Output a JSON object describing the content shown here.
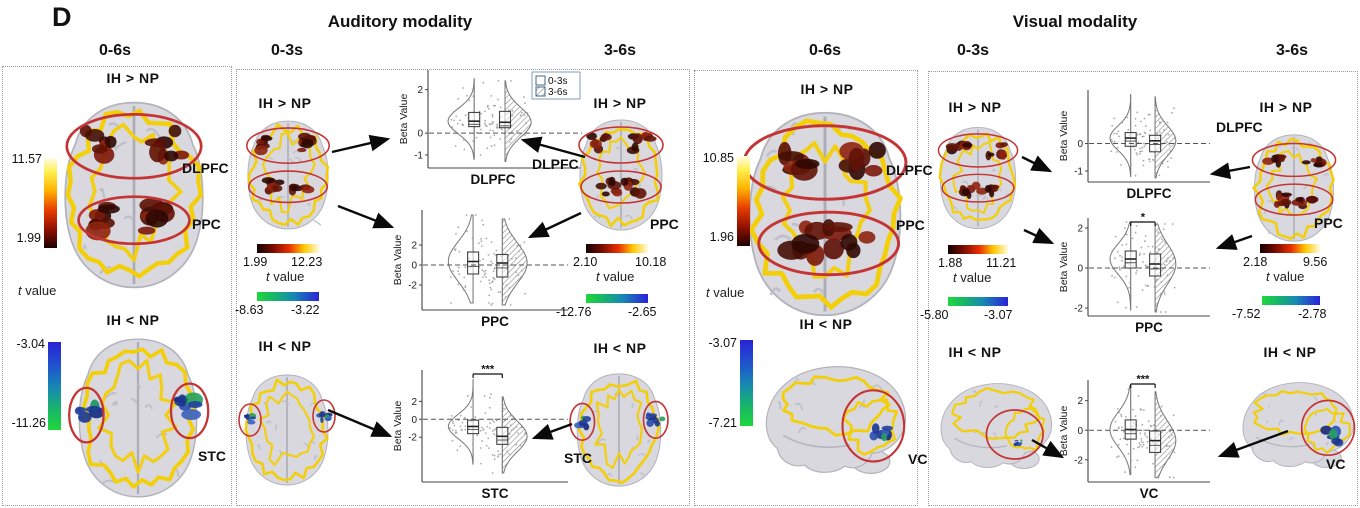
{
  "panel_label": "D",
  "sections": {
    "auditory": {
      "title": "Auditory modality"
    },
    "visual": {
      "title": "Visual modality"
    }
  },
  "time_headers": [
    "0-6s",
    "0-3s",
    "3-6s",
    "0-6s",
    "0-3s",
    "3-6s"
  ],
  "contrasts": {
    "positive": "IH > NP",
    "negative": "IH < NP"
  },
  "t_label": {
    "italic": "t",
    "rest": " value"
  },
  "colorbars": {
    "aud06": {
      "hot": {
        "max": "11.57",
        "min": "1.99"
      },
      "cool": {
        "max": "-3.04",
        "min": "-11.26"
      }
    },
    "aud03": {
      "hot": {
        "min": "1.99",
        "max": "12.23"
      },
      "cool": {
        "min": "-8.63",
        "max": "-3.22"
      }
    },
    "aud36": {
      "hot": {
        "min": "2.10",
        "max": "10.18"
      },
      "cool": {
        "min": "-12.76",
        "max": "-2.65"
      }
    },
    "vis06": {
      "hot": {
        "max": "10.85",
        "min": "1.96"
      },
      "cool": {
        "max": "-3.07",
        "min": "-7.21"
      }
    },
    "vis03": {
      "hot": {
        "min": "1.88",
        "max": "11.21"
      },
      "cool": {
        "min": "-5.80",
        "max": "-3.07"
      }
    },
    "vis36": {
      "hot": {
        "min": "2.18",
        "max": "9.56"
      },
      "cool": {
        "min": "-7.52",
        "max": "-2.78"
      }
    }
  },
  "regions": {
    "aud06": [
      "DLPFC",
      "PPC",
      "STC"
    ],
    "aud36": [
      "DLPFC",
      "PPC",
      "STC"
    ],
    "vis06": [
      "DLPFC",
      "PPC",
      "VC"
    ],
    "vis36": [
      "DLPFC",
      "PPC",
      "VC"
    ]
  },
  "chart_data": [
    {
      "type": "violin+box",
      "title": "Auditory DLPFC beta values",
      "xlabel": "DLPFC",
      "ylabel": "Beta Value",
      "yticks": [
        2,
        0,
        -1
      ],
      "ylim": [
        -1.6,
        2.9
      ],
      "zero_line": true,
      "significance": null,
      "legend": [
        "0-3s",
        "3-6s"
      ],
      "series": [
        {
          "name": "0-3s",
          "median": 0.55,
          "q1": 0.3,
          "q3": 0.95,
          "min": -1.2,
          "max": 2.5
        },
        {
          "name": "3-6s",
          "median": 0.5,
          "q1": 0.25,
          "q3": 1.0,
          "min": -1.3,
          "max": 2.4
        }
      ]
    },
    {
      "type": "violin+box",
      "title": "Auditory PPC beta values",
      "xlabel": "PPC",
      "ylabel": "Beta Value",
      "yticks": [
        2,
        0,
        -2
      ],
      "ylim": [
        -4.5,
        5.5
      ],
      "zero_line": true,
      "significance": null,
      "series": [
        {
          "name": "0-3s",
          "median": 0.35,
          "q1": -0.9,
          "q3": 1.3,
          "min": -3.8,
          "max": 5.0
        },
        {
          "name": "3-6s",
          "median": 0.2,
          "q1": -1.2,
          "q3": 1.05,
          "min": -4.0,
          "max": 4.6
        }
      ]
    },
    {
      "type": "violin+box",
      "title": "Auditory STC beta values",
      "xlabel": "STC",
      "ylabel": "Beta Value",
      "yticks": [
        2,
        0,
        -2
      ],
      "ylim": [
        -7.0,
        5.5
      ],
      "zero_line": true,
      "significance": "***",
      "series": [
        {
          "name": "0-3s",
          "median": -0.8,
          "q1": -1.6,
          "q3": -0.1,
          "min": -5.0,
          "max": 4.5
        },
        {
          "name": "3-6s",
          "median": -1.9,
          "q1": -2.8,
          "q3": -0.9,
          "min": -6.0,
          "max": 2.5
        }
      ]
    },
    {
      "type": "violin+box",
      "title": "Visual DLPFC beta values",
      "xlabel": "DLPFC",
      "ylabel": "Beta Value",
      "yticks": [
        0,
        -1
      ],
      "ylim": [
        -1.4,
        1.95
      ],
      "zero_line": true,
      "significance": null,
      "series": [
        {
          "name": "0-3s",
          "median": 0.2,
          "q1": -0.1,
          "q3": 0.4,
          "min": -1.2,
          "max": 1.8
        },
        {
          "name": "3-6s",
          "median": 0.1,
          "q1": -0.3,
          "q3": 0.3,
          "min": -1.25,
          "max": 1.7
        }
      ]
    },
    {
      "type": "violin+box",
      "title": "Visual PPC beta values",
      "xlabel": "PPC",
      "ylabel": "Beta Value",
      "yticks": [
        2,
        0,
        -2
      ],
      "ylim": [
        -2.4,
        2.5
      ],
      "zero_line": true,
      "significance": "*",
      "series": [
        {
          "name": "0-3s",
          "median": 0.45,
          "q1": 0.0,
          "q3": 0.85,
          "min": -2.1,
          "max": 2.3
        },
        {
          "name": "3-6s",
          "median": 0.2,
          "q1": -0.4,
          "q3": 0.7,
          "min": -2.2,
          "max": 2.2
        }
      ]
    },
    {
      "type": "violin+box",
      "title": "Visual VC beta values",
      "xlabel": "VC",
      "ylabel": "Beta Value",
      "yticks": [
        2,
        0,
        -2
      ],
      "ylim": [
        -3.5,
        3.4
      ],
      "zero_line": true,
      "significance": "***",
      "series": [
        {
          "name": "0-3s",
          "median": 0.05,
          "q1": -0.6,
          "q3": 0.7,
          "min": -3.0,
          "max": 3.0
        },
        {
          "name": "3-6s",
          "median": -0.7,
          "q1": -1.5,
          "q3": -0.05,
          "min": -3.2,
          "max": 2.6
        }
      ]
    }
  ]
}
